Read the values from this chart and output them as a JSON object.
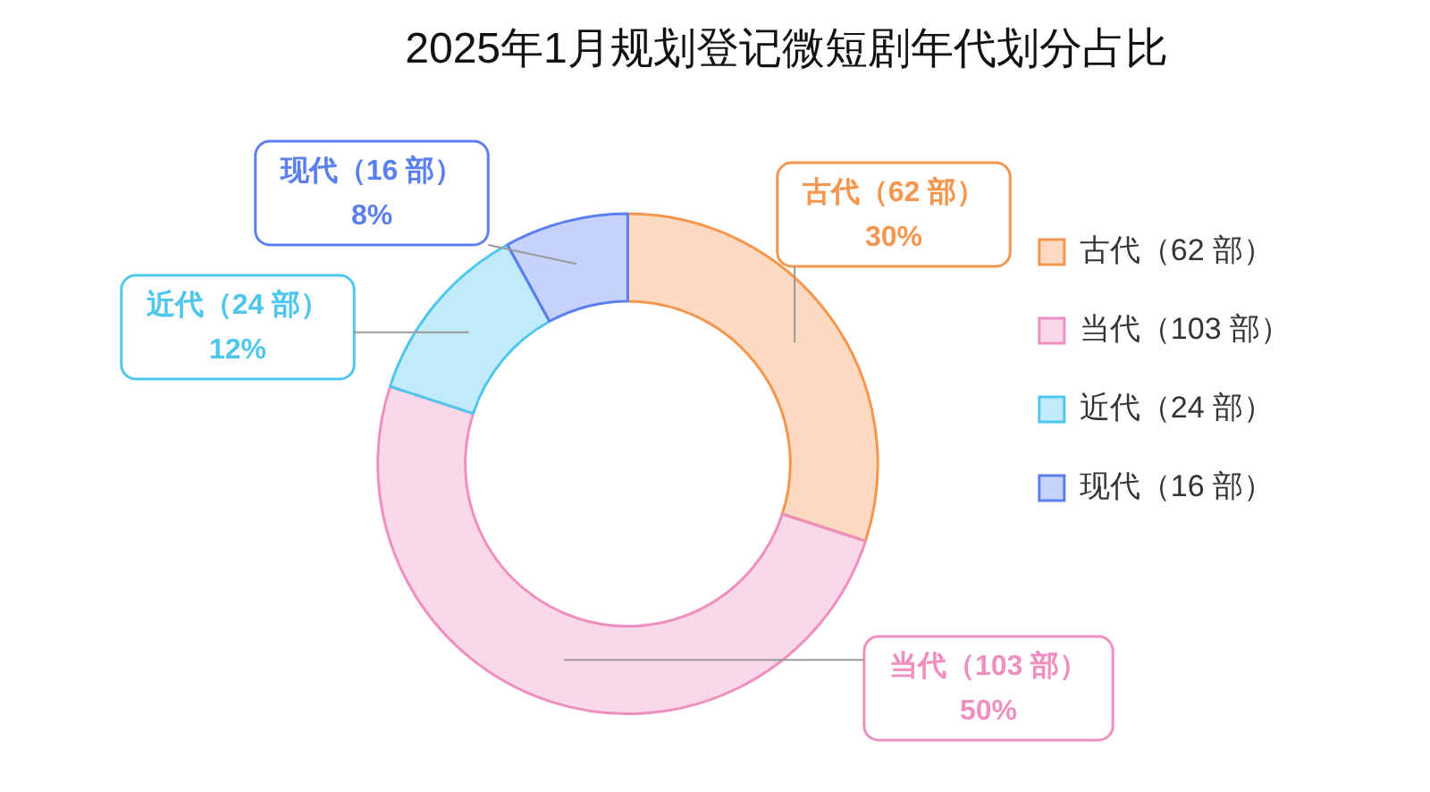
{
  "chart_data": {
    "type": "donut",
    "title": "2025年1月规划登记微短剧年代划分占比",
    "categories": [
      "古代（62 部）",
      "当代（103 部）",
      "近代（24 部）",
      "现代（16 部）"
    ],
    "values": [
      30,
      50,
      12,
      8
    ],
    "value_labels": [
      "30%",
      "50%",
      "12%",
      "8%"
    ],
    "colors": [
      "#f5964e",
      "#ef8fbf",
      "#4fc6ee",
      "#5b7ff0"
    ],
    "legend": "right"
  }
}
